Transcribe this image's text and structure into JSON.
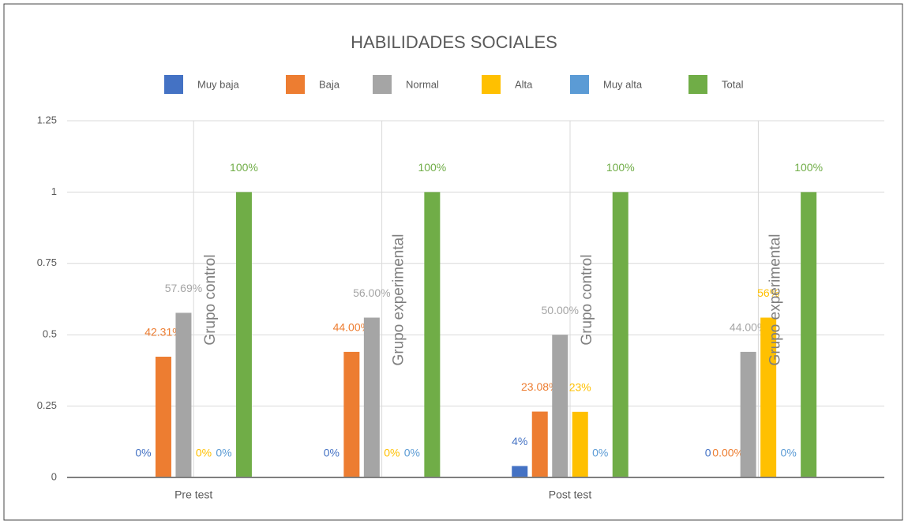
{
  "chart_data": {
    "type": "bar",
    "title": "HABILIDADES SOCIALES",
    "categories": [
      "Grupo control",
      "Grupo experimental",
      "Grupo control",
      "Grupo experimental"
    ],
    "category_groups": [
      "Pre test",
      "Post test"
    ],
    "series": [
      {
        "name": "Muy baja",
        "color": "#4472c4",
        "values": [
          0,
          0,
          0.04,
          0
        ],
        "value_labels": [
          "0%",
          "0%",
          "4%",
          "0"
        ]
      },
      {
        "name": "Baja",
        "color": "#ed7d31",
        "values": [
          0.4231,
          0.44,
          0.2308,
          0
        ],
        "value_labels": [
          "42.31%",
          "44.00%",
          "23.08%",
          "0.00%"
        ]
      },
      {
        "name": "Normal",
        "color": "#a5a5a5",
        "values": [
          0.5769,
          0.56,
          0.5,
          0.44
        ],
        "value_labels": [
          "57.69%",
          "56.00%",
          "50.00%",
          "44.00%"
        ]
      },
      {
        "name": "Alta",
        "color": "#ffc000",
        "values": [
          0,
          0,
          0.23,
          0.56
        ],
        "value_labels": [
          "0%",
          "0%",
          "23%",
          "56%"
        ]
      },
      {
        "name": "Muy alta",
        "color": "#5b9bd5",
        "values": [
          0,
          0,
          0,
          0
        ],
        "value_labels": [
          "0%",
          "0%",
          "0%",
          "0%"
        ]
      },
      {
        "name": "Total",
        "color": "#70ad47",
        "values": [
          1,
          1,
          1,
          1
        ],
        "value_labels": [
          "100%",
          "100%",
          "100%",
          "100%"
        ]
      }
    ],
    "ylim": [
      0,
      1.25
    ],
    "yticks": [
      0,
      0.25,
      0.5,
      0.75,
      1,
      1.25
    ],
    "grid": true,
    "legend": "top"
  }
}
